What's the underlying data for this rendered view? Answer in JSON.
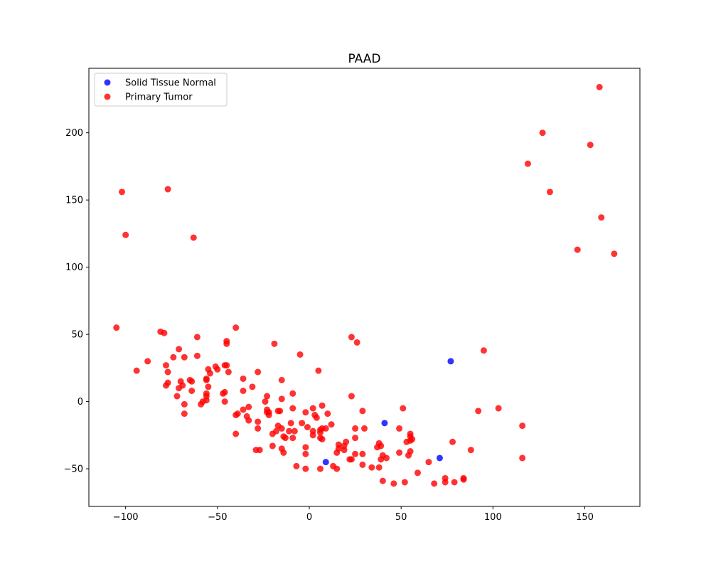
{
  "chart_data": {
    "type": "scatter",
    "title": "PAAD",
    "xlabel": "",
    "ylabel": "",
    "xlim": [
      -120,
      180
    ],
    "ylim": [
      -78,
      248
    ],
    "xticks": [
      -100,
      -50,
      0,
      50,
      100,
      150
    ],
    "yticks": [
      -50,
      0,
      50,
      100,
      150,
      200
    ],
    "grid": false,
    "legend_position": "upper-left",
    "series": [
      {
        "name": "Solid Tissue Normal",
        "color": "#0000ff",
        "points": [
          [
            9,
            -45
          ],
          [
            41,
            -16
          ],
          [
            71,
            -42
          ],
          [
            77,
            30
          ]
        ]
      },
      {
        "name": "Primary Tumor",
        "color": "#ff0000",
        "points": [
          [
            -102,
            156
          ],
          [
            -100,
            124
          ],
          [
            -77,
            158
          ],
          [
            -63,
            122
          ],
          [
            158,
            234
          ],
          [
            127,
            200
          ],
          [
            153,
            191
          ],
          [
            119,
            177
          ],
          [
            131,
            156
          ],
          [
            159,
            137
          ],
          [
            146,
            113
          ],
          [
            166,
            110
          ],
          [
            -105,
            55
          ],
          [
            -81,
            52
          ],
          [
            -79,
            51
          ],
          [
            -40,
            55
          ],
          [
            -61,
            48
          ],
          [
            -45,
            45
          ],
          [
            -45,
            43
          ],
          [
            -19,
            43
          ],
          [
            23,
            48
          ],
          [
            26,
            44
          ],
          [
            95,
            38
          ],
          [
            -5,
            35
          ],
          [
            -71,
            39
          ],
          [
            -74,
            33
          ],
          [
            -68,
            33
          ],
          [
            -61,
            34
          ],
          [
            -88,
            30
          ],
          [
            -94,
            23
          ],
          [
            -78,
            27
          ],
          [
            -77,
            22
          ],
          [
            -46,
            27
          ],
          [
            -45,
            27
          ],
          [
            -44,
            22
          ],
          [
            -51,
            26
          ],
          [
            -50,
            24
          ],
          [
            -55,
            24
          ],
          [
            -54,
            21
          ],
          [
            -56,
            17
          ],
          [
            -56,
            16
          ],
          [
            -28,
            22
          ],
          [
            5,
            23
          ],
          [
            -36,
            17
          ],
          [
            -15,
            16
          ],
          [
            -77,
            14
          ],
          [
            -78,
            12
          ],
          [
            -70,
            15
          ],
          [
            -69,
            12
          ],
          [
            -71,
            10
          ],
          [
            -64,
            15
          ],
          [
            -65,
            16
          ],
          [
            -55,
            11
          ],
          [
            -47,
            6
          ],
          [
            -46,
            7
          ],
          [
            -56,
            6
          ],
          [
            -56,
            4
          ],
          [
            -56,
            1
          ],
          [
            -58,
            0
          ],
          [
            -59,
            -2
          ],
          [
            -64,
            8
          ],
          [
            -72,
            4
          ],
          [
            -68,
            -2
          ],
          [
            -68,
            -9
          ],
          [
            -46,
            0
          ],
          [
            -36,
            8
          ],
          [
            -31,
            11
          ],
          [
            -23,
            4
          ],
          [
            -24,
            0
          ],
          [
            -15,
            2
          ],
          [
            -9,
            6
          ],
          [
            23,
            4
          ],
          [
            -23,
            -6
          ],
          [
            -22,
            -8
          ],
          [
            -23,
            -8
          ],
          [
            -22,
            -10
          ],
          [
            -33,
            -4
          ],
          [
            -36,
            -6
          ],
          [
            -39,
            -9
          ],
          [
            -40,
            -10
          ],
          [
            -34,
            -11
          ],
          [
            -33,
            -14
          ],
          [
            -28,
            -15
          ],
          [
            -28,
            -20
          ],
          [
            -16,
            -7
          ],
          [
            -17,
            -7
          ],
          [
            -9,
            -5
          ],
          [
            -2,
            -8
          ],
          [
            2,
            -5
          ],
          [
            3,
            -10
          ],
          [
            4,
            -12
          ],
          [
            7,
            -3
          ],
          [
            10,
            -9
          ],
          [
            29,
            -7
          ],
          [
            51,
            -5
          ],
          [
            92,
            -7
          ],
          [
            103,
            -5
          ],
          [
            -40,
            -24
          ],
          [
            -20,
            -24
          ],
          [
            -18,
            -22
          ],
          [
            -17,
            -18
          ],
          [
            -15,
            -20
          ],
          [
            -11,
            -22
          ],
          [
            -8,
            -22
          ],
          [
            -10,
            -16
          ],
          [
            -4,
            -16
          ],
          [
            -1,
            -19
          ],
          [
            2,
            -22
          ],
          [
            2,
            -25
          ],
          [
            6,
            -21
          ],
          [
            6,
            -23
          ],
          [
            7,
            -20
          ],
          [
            9,
            -20
          ],
          [
            12,
            -17
          ],
          [
            6,
            -27
          ],
          [
            7,
            -28
          ],
          [
            -14,
            -26
          ],
          [
            -13,
            -27
          ],
          [
            -9,
            -27
          ],
          [
            -20,
            -33
          ],
          [
            -15,
            -35
          ],
          [
            -14,
            -38
          ],
          [
            -27,
            -36
          ],
          [
            -29,
            -36
          ],
          [
            -2,
            -34
          ],
          [
            -2,
            -39
          ],
          [
            -7,
            -48
          ],
          [
            -2,
            -50
          ],
          [
            6,
            -50
          ],
          [
            13,
            -48
          ],
          [
            15,
            -50
          ],
          [
            15,
            -38
          ],
          [
            16,
            -35
          ],
          [
            16,
            -32
          ],
          [
            19,
            -36
          ],
          [
            19,
            -33
          ],
          [
            20,
            -30
          ],
          [
            25,
            -20
          ],
          [
            25,
            -27
          ],
          [
            30,
            -20
          ],
          [
            22,
            -43
          ],
          [
            23,
            -43
          ],
          [
            25,
            -39
          ],
          [
            29,
            -39
          ],
          [
            29,
            -47
          ],
          [
            34,
            -49
          ],
          [
            38,
            -49
          ],
          [
            37,
            -34
          ],
          [
            38,
            -31
          ],
          [
            39,
            -33
          ],
          [
            40,
            -40
          ],
          [
            39,
            -43
          ],
          [
            42,
            -42
          ],
          [
            49,
            -20
          ],
          [
            49,
            -38
          ],
          [
            53,
            -30
          ],
          [
            55,
            -29
          ],
          [
            55,
            -26
          ],
          [
            55,
            -24
          ],
          [
            56,
            -28
          ],
          [
            55,
            -37
          ],
          [
            54,
            -40
          ],
          [
            59,
            -53
          ],
          [
            65,
            -45
          ],
          [
            68,
            -61
          ],
          [
            74,
            -57
          ],
          [
            74,
            -60
          ],
          [
            78,
            -30
          ],
          [
            79,
            -60
          ],
          [
            84,
            -57
          ],
          [
            84,
            -58
          ],
          [
            88,
            -36
          ],
          [
            116,
            -18
          ],
          [
            116,
            -42
          ],
          [
            40,
            -59
          ],
          [
            46,
            -61
          ],
          [
            52,
            -60
          ]
        ]
      }
    ]
  }
}
